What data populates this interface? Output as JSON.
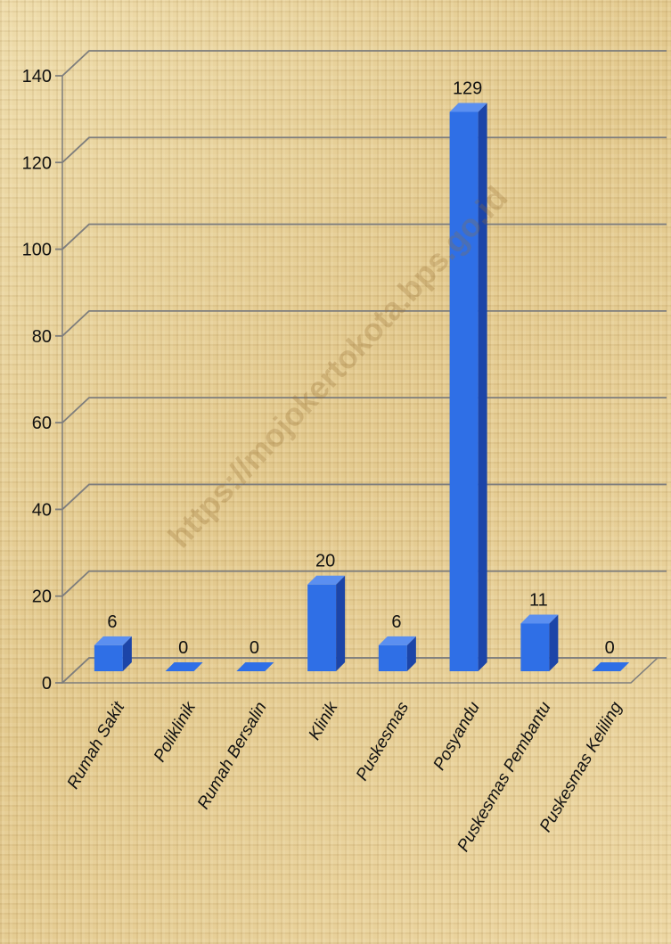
{
  "watermark": "https://mojokertokota.bps.go.id",
  "chart_data": {
    "type": "bar",
    "categories": [
      "Rumah Sakit",
      "Poliklinik",
      "Rumah Bersalin",
      "Klinik",
      "Puskesmas",
      "Posyandu",
      "Puskesmas Pembantu",
      "Puskesmas Keliling"
    ],
    "values": [
      6,
      0,
      0,
      20,
      6,
      129,
      11,
      0
    ],
    "data_labels": [
      "6",
      "0",
      "0",
      "20",
      "6",
      "129",
      "11",
      "0"
    ],
    "ylim": [
      0,
      140
    ],
    "yticks": [
      "0",
      "20",
      "40",
      "60",
      "80",
      "100",
      "120",
      "140"
    ],
    "grid": true,
    "legend": "none",
    "style": "3d-column",
    "colors": {
      "bar": "#2f6fe6",
      "bar_side": "#1c45a8",
      "bar_top": "#5b8ff0",
      "grid": "#7d7d7d",
      "background": "#e6cf97"
    }
  }
}
